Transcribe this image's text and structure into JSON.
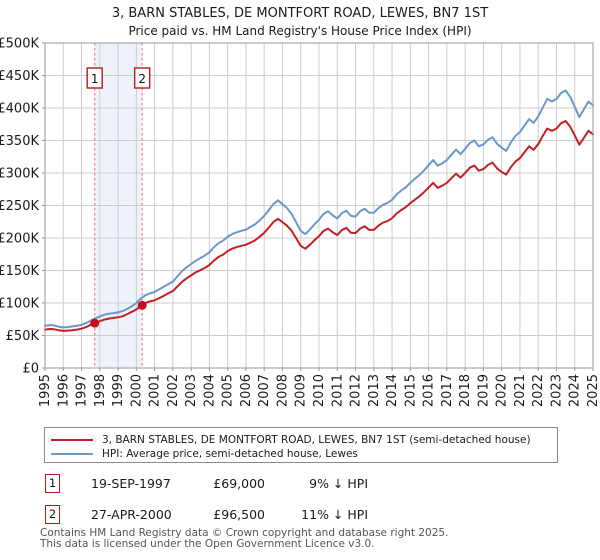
{
  "title": "3, BARN STABLES, DE MONTFORT ROAD, LEWES, BN7 1ST",
  "subtitle": "Price paid vs. HM Land Registry's House Price Index (HPI)",
  "colors": {
    "property": "#c32026",
    "hpi": "#6a98c8",
    "sale_line": "#f87e7e",
    "band": "#eef3fb",
    "grid": "#cccccc",
    "plot_border": "#9a9a9a",
    "badge_border": "#b01c1c",
    "marker": "#c10f1f"
  },
  "chart_data": {
    "type": "line",
    "xlim": [
      1995,
      2025
    ],
    "ylim": [
      0,
      500
    ],
    "x_ticks": [
      1995,
      1996,
      1997,
      1998,
      1999,
      2000,
      2001,
      2002,
      2003,
      2004,
      2005,
      2006,
      2007,
      2008,
      2009,
      2010,
      2011,
      2012,
      2013,
      2014,
      2015,
      2016,
      2017,
      2018,
      2019,
      2020,
      2021,
      2022,
      2023,
      2024,
      2025
    ],
    "y_ticks": [
      0,
      50,
      100,
      150,
      200,
      250,
      300,
      350,
      400,
      450,
      500
    ],
    "y_tick_labels": [
      "£0",
      "£50K",
      "£100K",
      "£150K",
      "£200K",
      "£250K",
      "£300K",
      "£350K",
      "£400K",
      "£450K",
      "£500K"
    ],
    "grid": true,
    "units": "GBP thousands",
    "series": [
      {
        "name": "HPI: Average price, semi-detached house, Lewes",
        "color": "#6a98c8",
        "x_start": 1995,
        "x_step": 0.25,
        "values": [
          65,
          66,
          65.5,
          63.5,
          62.5,
          63,
          64,
          65,
          66.5,
          69,
          73,
          76.5,
          79,
          82,
          83.5,
          84.5,
          85.5,
          87.5,
          91,
          95,
          100,
          107,
          112,
          115,
          117,
          121,
          125,
          129,
          133,
          141,
          149,
          155,
          160,
          165,
          169,
          173,
          178,
          186,
          192,
          196,
          202,
          206,
          209,
          211,
          213,
          217,
          221,
          227,
          234,
          243,
          252,
          258,
          252,
          246,
          237,
          224,
          211,
          206,
          213,
          221,
          228,
          237,
          241,
          235,
          230,
          238,
          242,
          234,
          233,
          241,
          245,
          239,
          239,
          246,
          251,
          254,
          259,
          267,
          273,
          278,
          285,
          291,
          297,
          304,
          312,
          320,
          311,
          315,
          320,
          328,
          336,
          329,
          337,
          346,
          350,
          341,
          344,
          351,
          355,
          345,
          339,
          334,
          347,
          357,
          363,
          373,
          383,
          377,
          387,
          401,
          414,
          410,
          414,
          423,
          427,
          417,
          402,
          386,
          398,
          410,
          404
        ]
      },
      {
        "name": "3, BARN STABLES, DE MONTFORT ROAD, LEWES, BN7 1ST (semi-detached house)",
        "color": "#c32026",
        "x_start": 1995,
        "x_step": 0.25,
        "values": [
          59,
          60,
          59.5,
          58,
          57,
          57.5,
          58,
          59,
          60.5,
          63,
          66.5,
          69.5,
          72,
          74.5,
          76,
          77,
          78,
          79.5,
          83,
          86.5,
          90,
          96,
          100,
          102.5,
          104,
          107.5,
          111,
          115,
          118.5,
          125.5,
          132.5,
          138,
          142.5,
          147,
          150.5,
          154,
          158.5,
          165.5,
          171,
          174.5,
          180,
          183.5,
          186,
          188,
          189.5,
          193,
          196.5,
          202,
          208,
          216,
          224.5,
          229.5,
          224.5,
          219,
          211,
          199.5,
          188,
          183.5,
          189.5,
          196.5,
          203,
          211,
          214.5,
          209,
          204.5,
          212,
          215.5,
          208,
          207.5,
          214.5,
          218,
          212.5,
          212.5,
          219,
          223.5,
          226,
          230.5,
          237.5,
          243,
          247.5,
          253.5,
          259,
          264.5,
          270.5,
          277.5,
          285,
          277,
          280.5,
          285,
          292,
          299,
          293,
          300,
          308,
          311.5,
          303.5,
          306,
          312.5,
          316,
          307,
          301.5,
          297.5,
          309,
          317.5,
          323,
          332,
          341,
          335.5,
          344.5,
          357,
          368.5,
          365,
          368.5,
          376.5,
          380,
          371,
          358,
          343.5,
          354,
          365,
          359.5
        ]
      }
    ],
    "sales": [
      {
        "label": "1",
        "year": 1997.72,
        "value": 69
      },
      {
        "label": "2",
        "year": 2000.32,
        "value": 96.5
      }
    ]
  },
  "legend": [
    {
      "label": "3, BARN STABLES, DE MONTFORT ROAD, LEWES, BN7 1ST (semi-detached house)",
      "color": "#c32026"
    },
    {
      "label": "HPI: Average price, semi-detached house, Lewes",
      "color": "#6a98c8"
    }
  ],
  "transactions": [
    {
      "n": "1",
      "date": "19-SEP-1997",
      "price": "£69,000",
      "hpi_delta": "9% ↓ HPI"
    },
    {
      "n": "2",
      "date": "27-APR-2000",
      "price": "£96,500",
      "hpi_delta": "11% ↓ HPI"
    }
  ],
  "footer": {
    "line1": "Contains HM Land Registry data © Crown copyright and database right 2025.",
    "line2": "This data is licensed under the Open Government Licence v3.0."
  }
}
